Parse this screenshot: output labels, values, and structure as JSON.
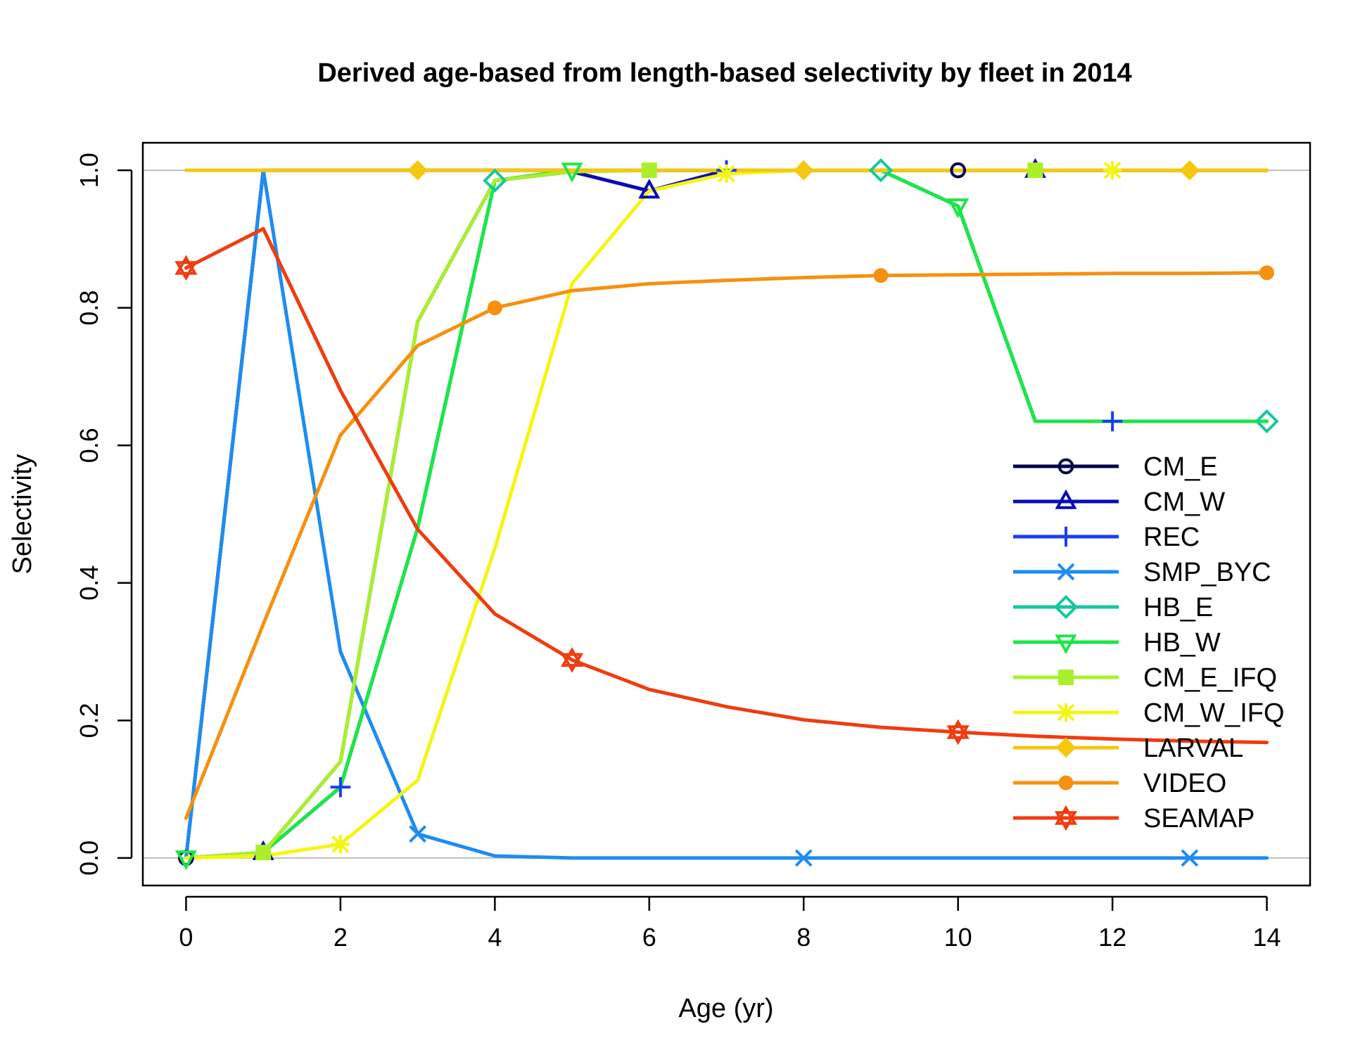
{
  "chart_data": {
    "type": "line",
    "title": "Derived age-based from length-based selectivity by fleet in 2014",
    "xlabel": "Age (yr)",
    "ylabel": "Selectivity",
    "xlim": [
      -0.56,
      14.56
    ],
    "ylim": [
      -0.04,
      1.04
    ],
    "x_ticks": [
      0,
      2,
      4,
      6,
      8,
      10,
      12,
      14
    ],
    "y_ticks": [
      0.0,
      0.2,
      0.4,
      0.6,
      0.8,
      1.0
    ],
    "x_tick_labels": [
      "0",
      "2",
      "4",
      "6",
      "8",
      "10",
      "12",
      "14"
    ],
    "y_tick_labels": [
      "0.0",
      "0.2",
      "0.4",
      "0.6",
      "0.8",
      "1.0"
    ],
    "grid": "horizontal reference lines at 0 and 1",
    "legend_position": "right",
    "x": [
      0,
      1,
      2,
      3,
      4,
      5,
      6,
      7,
      8,
      9,
      10,
      11,
      12,
      13,
      14
    ],
    "series": [
      {
        "name": "CM_E",
        "color": "#00004d",
        "marker": "circle",
        "marker_at": [
          0,
          10
        ],
        "values": [
          0,
          1,
          1,
          1,
          1,
          1,
          1,
          1,
          1,
          1,
          1,
          1,
          1,
          1,
          1
        ]
      },
      {
        "name": "CM_W",
        "color": "#0a0ab4",
        "marker": "triangle-up",
        "marker_at": [
          1,
          6,
          11
        ],
        "values": [
          0,
          0.008,
          0.14,
          0.78,
          0.985,
          0.998,
          0.97,
          1,
          1,
          1,
          1,
          1,
          1,
          1,
          1
        ]
      },
      {
        "name": "REC",
        "color": "#1a3ef0",
        "marker": "plus",
        "marker_at": [
          2,
          7,
          12
        ],
        "values": [
          0,
          0.008,
          0.103,
          0.48,
          0.985,
          1,
          1,
          1,
          1,
          1,
          0.948,
          0.635,
          0.635,
          0.635,
          0.635
        ]
      },
      {
        "name": "SMP_BYC",
        "color": "#1e8cf0",
        "marker": "cross",
        "marker_at": [
          3,
          8,
          13
        ],
        "values": [
          0,
          1,
          0.3,
          0.035,
          0.003,
          0,
          0,
          0,
          0,
          0,
          0,
          0,
          0,
          0,
          0
        ]
      },
      {
        "name": "HB_E",
        "color": "#14c8a0",
        "marker": "diamond",
        "marker_at": [
          4,
          9,
          14
        ],
        "values": [
          0,
          0.008,
          0.103,
          0.48,
          0.985,
          1,
          1,
          1,
          1,
          1,
          0.948,
          0.635,
          0.635,
          0.635,
          0.635
        ]
      },
      {
        "name": "HB_W",
        "color": "#1ee646",
        "marker": "triangle-down",
        "marker_at": [
          0,
          5,
          10
        ],
        "values": [
          0,
          0.008,
          0.103,
          0.48,
          0.985,
          1,
          1,
          1,
          1,
          1,
          0.948,
          0.635,
          0.635,
          0.635,
          0.635
        ]
      },
      {
        "name": "CM_E_IFQ",
        "color": "#aaf02a",
        "marker": "square",
        "marker_at": [
          1,
          6,
          11
        ],
        "values": [
          0,
          0.008,
          0.14,
          0.78,
          0.985,
          0.998,
          1,
          1,
          1,
          1,
          1,
          1,
          1,
          1,
          1
        ]
      },
      {
        "name": "CM_W_IFQ",
        "color": "#f5f514",
        "marker": "asterisk",
        "marker_at": [
          2,
          7,
          12
        ],
        "values": [
          0,
          0.003,
          0.02,
          0.113,
          0.45,
          0.835,
          0.97,
          0.995,
          1,
          1,
          1,
          1,
          1,
          1,
          1
        ]
      },
      {
        "name": "LARVAL",
        "color": "#f5c80f",
        "marker": "diamond-filled",
        "marker_at": [
          3,
          8,
          13
        ],
        "values": [
          1,
          1,
          1,
          1,
          1,
          1,
          1,
          1,
          1,
          1,
          1,
          1,
          1,
          1,
          1
        ]
      },
      {
        "name": "VIDEO",
        "color": "#f5910f",
        "marker": "circle-filled",
        "marker_at": [
          4,
          9,
          14
        ],
        "values": [
          0.058,
          0.34,
          0.615,
          0.745,
          0.8,
          0.825,
          0.835,
          0.84,
          0.844,
          0.847,
          0.848,
          0.849,
          0.85,
          0.85,
          0.851
        ]
      },
      {
        "name": "SEAMAP",
        "color": "#f03c0f",
        "marker": "star-of-david",
        "marker_at": [
          0,
          5,
          10
        ],
        "values": [
          0.858,
          0.915,
          0.68,
          0.478,
          0.355,
          0.288,
          0.245,
          0.22,
          0.201,
          0.19,
          0.183,
          0.177,
          0.173,
          0.17,
          0.168
        ]
      }
    ]
  }
}
